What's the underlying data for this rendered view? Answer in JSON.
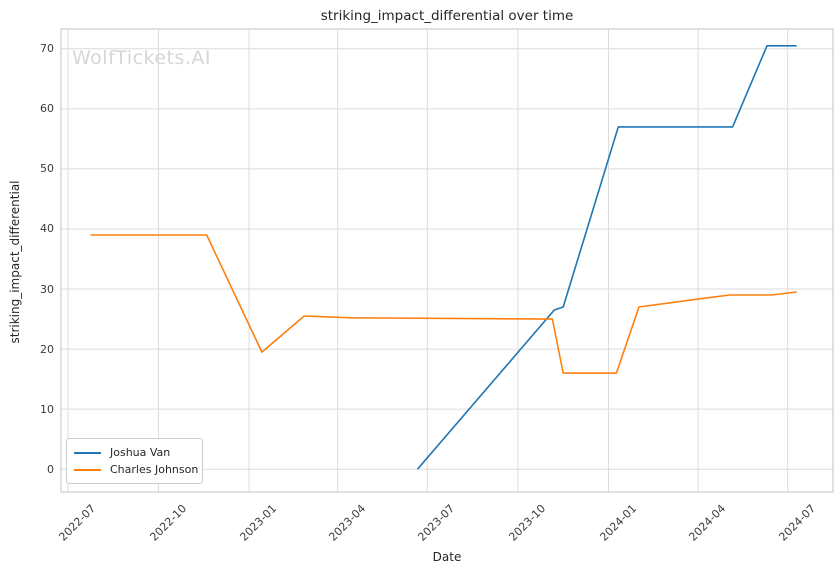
{
  "watermark": "WolfTickets.AI",
  "colors": {
    "background": "#ffffff",
    "grid": "#dcdcdc",
    "spine": "#cccccc",
    "text": "#262626",
    "tick_text": "#3b3b3b",
    "watermark": "#d6d6d6",
    "series_blue": "#1f77b4",
    "series_orange": "#ff7f0e"
  },
  "chart_data": {
    "type": "line",
    "title": "striking_impact_differential over time",
    "xlabel": "Date",
    "ylabel": "striking_impact_differential",
    "grid": true,
    "legend_position": "lower left",
    "x_ticks": [
      "2022-07",
      "2022-10",
      "2023-01",
      "2023-04",
      "2023-07",
      "2023-10",
      "2024-01",
      "2024-04",
      "2024-07"
    ],
    "y_ticks": [
      0,
      10,
      20,
      30,
      40,
      50,
      60,
      70
    ],
    "xlim": [
      "2022-06-24",
      "2024-08-16"
    ],
    "ylim": [
      -3.8,
      73.3
    ],
    "series": [
      {
        "name": "Joshua Van",
        "color": "#1f77b4",
        "points": [
          [
            "2023-06-21",
            0
          ],
          [
            "2023-11-07",
            26.5
          ],
          [
            "2023-11-16",
            27
          ],
          [
            "2024-01-11",
            57
          ],
          [
            "2024-05-06",
            57
          ],
          [
            "2024-06-10",
            70.5
          ],
          [
            "2024-07-10",
            70.5
          ]
        ]
      },
      {
        "name": "Charles Johnson",
        "color": "#ff7f0e",
        "points": [
          [
            "2022-07-24",
            39
          ],
          [
            "2022-11-19",
            39
          ],
          [
            "2023-01-14",
            19.5
          ],
          [
            "2023-02-26",
            25.5
          ],
          [
            "2023-04-15",
            25.2
          ],
          [
            "2023-11-05",
            25
          ],
          [
            "2023-11-16",
            16
          ],
          [
            "2024-01-09",
            16
          ],
          [
            "2024-02-01",
            27
          ],
          [
            "2024-03-31",
            28.3
          ],
          [
            "2024-05-03",
            29
          ],
          [
            "2024-06-15",
            29
          ],
          [
            "2024-07-10",
            29.5
          ]
        ]
      }
    ]
  }
}
